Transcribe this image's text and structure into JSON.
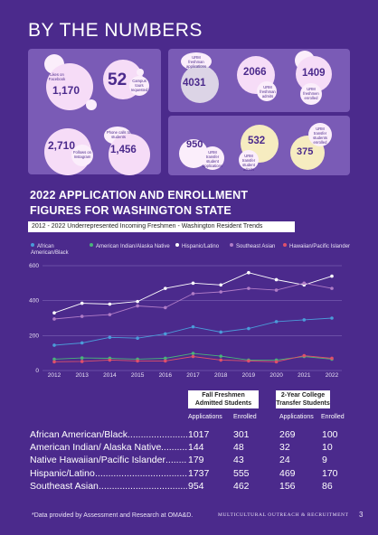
{
  "page_title": "BY THE NUMBERS",
  "stats": [
    {
      "id": "facebook-likes",
      "value": "1,170",
      "label": "Likes on Facebook"
    },
    {
      "id": "campus-tours",
      "value": "52",
      "label": "Campus tours requested"
    },
    {
      "id": "instagram-followers",
      "value": "2,710",
      "label": "Follows on Instagram"
    },
    {
      "id": "phone-calls",
      "value": "1,456",
      "label": "Phone calls to students"
    },
    {
      "id": "urm-freshmen-applications",
      "value": "4031",
      "label": "URM freshman applications"
    },
    {
      "id": "urm-freshmen-admits",
      "value": "2066",
      "label": "URM freshman admits"
    },
    {
      "id": "urm-freshmen-enrolled",
      "value": "1409",
      "label": "URM freshmen enrolled"
    },
    {
      "id": "urm-transfer-applications",
      "value": "950",
      "label": "URM transfer student applications"
    },
    {
      "id": "urm-transfer-admits",
      "value": "532",
      "label": "URM transfer student admits"
    },
    {
      "id": "urm-transfer-enrolled",
      "value": "375",
      "label": "URM transfer students enrolled"
    }
  ],
  "section_title_line1": "2022 APPLICATION AND ENROLLMENT",
  "section_title_line2": "FIGURES FOR WASHINGTON STATE",
  "chart_data": {
    "type": "line",
    "title": "2012 - 2022 Underrepresented Incoming Freshmen - Washington Resident Trends",
    "x": [
      2012,
      2013,
      2014,
      2015,
      2016,
      2017,
      2018,
      2019,
      2020,
      2021,
      2022
    ],
    "ylim": [
      0,
      600
    ],
    "yticks": [
      0,
      200,
      400,
      600
    ],
    "grid": true,
    "legend_position": "top",
    "series": [
      {
        "name": "African American/Black",
        "color": "#4b9bd9",
        "values": [
          145,
          158,
          190,
          185,
          210,
          250,
          220,
          240,
          280,
          290,
          300
        ]
      },
      {
        "name": "American Indian/Alaska Native",
        "color": "#49b37b",
        "values": [
          65,
          72,
          70,
          65,
          70,
          98,
          82,
          60,
          60,
          80,
          65
        ]
      },
      {
        "name": "Hispanic/Latino",
        "color": "#ffffff",
        "values": [
          330,
          385,
          380,
          395,
          470,
          500,
          490,
          560,
          520,
          490,
          540
        ]
      },
      {
        "name": "Southeast Asian",
        "color": "#b07cc7",
        "values": [
          295,
          310,
          320,
          370,
          360,
          440,
          450,
          470,
          460,
          500,
          470
        ]
      },
      {
        "name": "Hawaiian/Pacific Islander",
        "color": "#e0506a",
        "values": [
          50,
          52,
          60,
          55,
          55,
          80,
          60,
          55,
          50,
          85,
          70
        ]
      }
    ]
  },
  "table": {
    "freshmen_header": "Fall Freshmen Admitted Students",
    "transfer_header": "2-Year College Transfer Students",
    "col_applications": "Applications",
    "col_enrolled": "Enrolled",
    "rows": [
      {
        "label": "African American/Black",
        "fr_app": "1017",
        "fr_enr": "301",
        "tr_app": "269",
        "tr_enr": "100"
      },
      {
        "label": "American Indian/ Alaska Native",
        "fr_app": "144",
        "fr_enr": "48",
        "tr_app": "32",
        "tr_enr": "10"
      },
      {
        "label": "Native Hawaiian/Pacific Islander",
        "fr_app": "179",
        "fr_enr": "43",
        "tr_app": "24",
        "tr_enr": "9"
      },
      {
        "label": "Hispanic/Latino",
        "fr_app": "1737",
        "fr_enr": "555",
        "tr_app": "469",
        "tr_enr": "170"
      },
      {
        "label": "Southeast Asian",
        "fr_app": "954",
        "fr_enr": "462",
        "tr_app": "156",
        "tr_enr": "86"
      }
    ]
  },
  "footnote": "*Data provided by Assessment and Research at OMA&D.",
  "footer_right": "MULTICULTURAL OUTREACH & RECRUITMENT",
  "page_number": "3"
}
